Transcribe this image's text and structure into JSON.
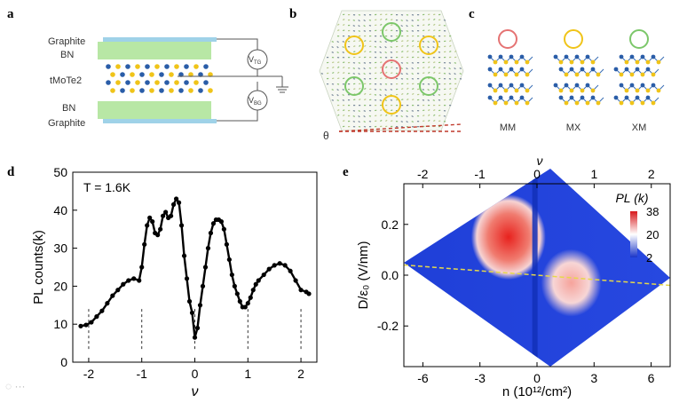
{
  "panels": {
    "a": {
      "letter": "a",
      "layers": [
        "Graphite",
        "BN",
        "tMoTe2",
        "BN",
        "Graphite"
      ],
      "vtg": {
        "main": "V",
        "sub": "TG"
      },
      "vbg": {
        "main": "V",
        "sub": "BG"
      }
    },
    "b": {
      "letter": "b",
      "theta": "θ"
    },
    "c": {
      "letter": "c",
      "stackings": [
        "MM",
        "MX",
        "XM"
      ],
      "ring_colors": [
        "#e57373",
        "#f0c419",
        "#7cc76a"
      ]
    },
    "d": {
      "letter": "d"
    },
    "e": {
      "letter": "e"
    }
  },
  "colors": {
    "graphite": "#9fd2e8",
    "bn": "#b8e7a5",
    "te_blue": "#2a5da8",
    "mo_yellow": "#f0c419",
    "red_ring": "#e57373",
    "green_ring": "#7cc76a",
    "yellow_ring": "#f0c419"
  },
  "chart_data": [
    {
      "type": "scatter",
      "panel": "d",
      "annotation": "T = 1.6K",
      "xlabel": "ν",
      "ylabel": "PL counts(k)",
      "xlim": [
        -2.3,
        2.3
      ],
      "ylim": [
        0,
        50
      ],
      "xticks": [
        -2,
        -1,
        0,
        1,
        2
      ],
      "yticks": [
        0,
        10,
        20,
        30,
        40,
        50
      ],
      "x": [
        -2.15,
        -2.05,
        -1.95,
        -1.85,
        -1.75,
        -1.65,
        -1.55,
        -1.45,
        -1.35,
        -1.25,
        -1.15,
        -1.05,
        -1.0,
        -0.95,
        -0.9,
        -0.85,
        -0.8,
        -0.75,
        -0.7,
        -0.65,
        -0.6,
        -0.55,
        -0.5,
        -0.45,
        -0.4,
        -0.35,
        -0.3,
        -0.25,
        -0.2,
        -0.15,
        -0.1,
        -0.05,
        0.0,
        0.05,
        0.1,
        0.15,
        0.2,
        0.25,
        0.3,
        0.35,
        0.4,
        0.45,
        0.5,
        0.55,
        0.6,
        0.65,
        0.7,
        0.75,
        0.8,
        0.85,
        0.9,
        0.95,
        1.0,
        1.05,
        1.1,
        1.15,
        1.2,
        1.3,
        1.4,
        1.5,
        1.6,
        1.7,
        1.8,
        1.9,
        2.0,
        2.1,
        2.15
      ],
      "y": [
        9.5,
        9.8,
        10.5,
        12,
        13.5,
        15.5,
        17.5,
        19,
        20.5,
        21.5,
        22,
        21.5,
        25,
        31,
        36,
        38,
        37,
        34,
        33.5,
        35,
        38.5,
        39.5,
        38,
        38.5,
        41.5,
        43,
        42,
        36,
        28,
        22,
        16,
        13,
        6.5,
        9,
        15,
        20,
        25,
        30,
        34,
        36.5,
        37.5,
        37.5,
        37,
        35,
        31,
        27,
        23,
        20,
        18,
        16,
        14.5,
        14.5,
        15.5,
        17,
        19,
        20.5,
        21.5,
        23,
        24.5,
        25.5,
        26,
        25.5,
        24,
        21.5,
        19,
        18.5,
        18
      ],
      "guides_x": [
        -2,
        -1,
        0,
        1,
        2
      ]
    },
    {
      "type": "heatmap",
      "panel": "e",
      "title": "PL (k)",
      "xlabel": "n (10¹²/cm²)",
      "ylabel": "D/ε₀ (V/nm)",
      "top_xlabel": "ν",
      "xlim": [
        -7,
        7
      ],
      "ylim": [
        -0.36,
        0.36
      ],
      "xticks": [
        -6,
        -3,
        0,
        3,
        6
      ],
      "yticks": [
        -0.2,
        0.0,
        0.2
      ],
      "top_xticks": [
        -2,
        -1,
        0,
        1,
        2
      ],
      "colorbar_ticks": [
        38,
        20,
        2
      ],
      "colorbar_range": [
        2,
        38
      ]
    }
  ]
}
